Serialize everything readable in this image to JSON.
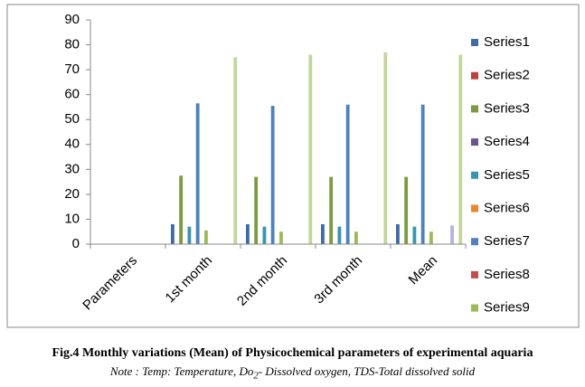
{
  "chart_data": {
    "type": "bar",
    "categories": [
      "Parameters",
      "1st month",
      "2nd month",
      "3rd month",
      "Mean"
    ],
    "series": [
      {
        "name": "Series1",
        "color": "#3f6aa8",
        "values": [
          0,
          8,
          8,
          8,
          8
        ]
      },
      {
        "name": "Series2",
        "color": "#b8413e",
        "values": [
          0,
          0,
          0,
          0,
          0
        ]
      },
      {
        "name": "Series3",
        "color": "#7c9a3f",
        "values": [
          0,
          27.5,
          27,
          27,
          27
        ]
      },
      {
        "name": "Series4",
        "color": "#6a5390",
        "values": [
          0,
          0,
          0,
          0,
          0
        ]
      },
      {
        "name": "Series5",
        "color": "#3a95ac",
        "values": [
          0,
          7,
          7,
          7,
          7
        ]
      },
      {
        "name": "Series6",
        "color": "#e8852f",
        "values": [
          0,
          0,
          0,
          0,
          0
        ]
      },
      {
        "name": "Series7",
        "color": "#4f81bd",
        "values": [
          0,
          56.5,
          55.5,
          56,
          56
        ]
      },
      {
        "name": "Series8",
        "color": "#c0504d",
        "values": [
          0,
          0,
          0,
          0,
          0
        ]
      },
      {
        "name": "Series9",
        "color": "#9bbb59",
        "values": [
          0,
          5.5,
          5,
          5,
          5
        ]
      },
      {
        "color": "#8064a2",
        "values": [
          0,
          0,
          0,
          0,
          0
        ]
      },
      {
        "color": "#4bacc6",
        "values": [
          0,
          0,
          0,
          0,
          0
        ]
      },
      {
        "color": "#f79646",
        "values": [
          0,
          0,
          0,
          0,
          0
        ]
      },
      {
        "color": "#95b3d7",
        "values": [
          0,
          0,
          0,
          0,
          0
        ]
      },
      {
        "color": "#b3b5dc",
        "values": [
          0,
          0,
          0,
          0,
          7.5
        ]
      },
      {
        "color": "#d99694",
        "values": [
          0,
          0,
          0,
          0,
          0
        ]
      },
      {
        "color": "#c3d69b",
        "values": [
          0,
          75,
          76,
          77,
          76
        ]
      }
    ],
    "ylim": [
      0,
      90
    ],
    "yticks": [
      0,
      10,
      20,
      30,
      40,
      50,
      60,
      70,
      80,
      90
    ],
    "legend": "right"
  },
  "caption": "Fig.4 Monthly variations (Mean) of Physicochemical parameters of experimental aquaria",
  "note": {
    "before": "Note : Temp: Temperature, Do",
    "sub": "2",
    "after": "- Dissolved oxygen, TDS-Total dissolved solid"
  }
}
